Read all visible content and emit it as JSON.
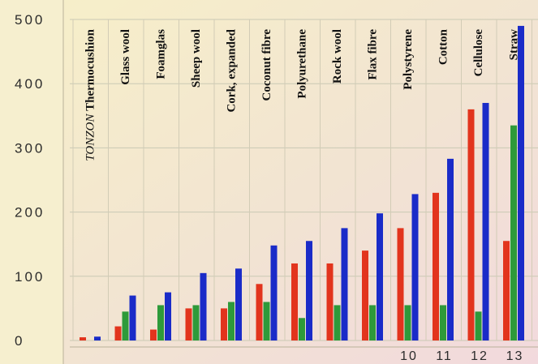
{
  "chart_data": {
    "type": "bar",
    "title": "",
    "xlabel": "",
    "ylabel": "",
    "ylim": [
      0,
      500
    ],
    "yticks": [
      "0",
      "100",
      "200",
      "300",
      "400",
      "500"
    ],
    "grid": true,
    "categories": [
      {
        "name": "Thermocushion",
        "prefix": "TONZON",
        "number": ""
      },
      {
        "name": "Glass wool",
        "prefix": "",
        "number": ""
      },
      {
        "name": "Foamglas",
        "prefix": "",
        "number": ""
      },
      {
        "name": "Sheep wool",
        "prefix": "",
        "number": ""
      },
      {
        "name": "Cork, expanded",
        "prefix": "",
        "number": ""
      },
      {
        "name": "Coconut fibre",
        "prefix": "",
        "number": ""
      },
      {
        "name": "Polyurethane",
        "prefix": "",
        "number": ""
      },
      {
        "name": "Rock wool",
        "prefix": "",
        "number": ""
      },
      {
        "name": "Flax fibre",
        "prefix": "",
        "number": ""
      },
      {
        "name": "Polystyrene",
        "prefix": "",
        "number": "10"
      },
      {
        "name": "Cotton",
        "prefix": "",
        "number": "11"
      },
      {
        "name": "Cellulose",
        "prefix": "",
        "number": "12"
      },
      {
        "name": "Straw",
        "prefix": "",
        "number": "13"
      }
    ],
    "series": [
      {
        "color": "#e2341d",
        "values": [
          5,
          22,
          17,
          50,
          50,
          88,
          120,
          120,
          140,
          175,
          230,
          360,
          155
        ]
      },
      {
        "color": "#2e9a3a",
        "values": [
          0,
          45,
          55,
          55,
          60,
          60,
          35,
          55,
          55,
          55,
          55,
          45,
          335
        ]
      },
      {
        "color": "#1a2bc8",
        "values": [
          6,
          70,
          75,
          105,
          112,
          148,
          155,
          175,
          198,
          228,
          283,
          370,
          490
        ]
      }
    ]
  }
}
